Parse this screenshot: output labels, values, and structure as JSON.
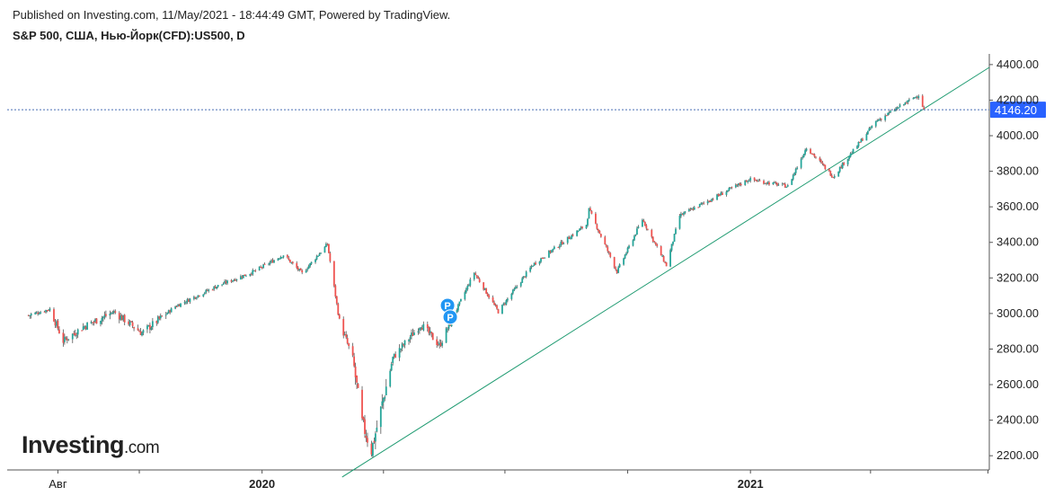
{
  "header": {
    "published": "Published on Investing.com, 11/May/2021 - 18:44:49 GMT, Powered by TradingView.",
    "title": "S&P 500, США, Нью-Йорк(CFD):US500, D"
  },
  "logo": {
    "main": "Investing",
    "suffix": ".com"
  },
  "colors": {
    "up": "#26a69a",
    "down": "#ef5350",
    "candle_wick": "#555555",
    "trendline": "#1f9b71",
    "price_line": "#4a6fb5",
    "price_label_bg": "#2962ff",
    "axis": "#555555"
  },
  "chart_data": {
    "type": "candlestick",
    "ylim": [
      2120,
      4460
    ],
    "y_ticks": [
      2200,
      2400,
      2600,
      2800,
      3000,
      3200,
      3400,
      3600,
      3800,
      4000,
      4200,
      4400
    ],
    "y_tick_labels": [
      "2200.00",
      "2400.00",
      "2600.00",
      "2800.00",
      "3000.00",
      "3200.00",
      "3400.00",
      "3600.00",
      "3800.00",
      "4000.00",
      "4200.00",
      "4400.00"
    ],
    "x_labels": [
      {
        "date": "2019-08-01",
        "label": "Авг",
        "bold": false
      },
      {
        "date": "2020-01-01",
        "label": "2020",
        "bold": true
      },
      {
        "date": "2021-01-01",
        "label": "2021",
        "bold": true
      }
    ],
    "x_start": "2019-06-24",
    "x_end": "2021-06-29",
    "current_price": 4146.2,
    "current_price_label": "4146.20",
    "trendline": [
      {
        "date": "2020-03-01",
        "value": 2080
      },
      {
        "date": "2021-06-26",
        "value": 4370
      }
    ],
    "markers": [
      {
        "date": "2020-05-19",
        "value": 3045,
        "label": "P"
      },
      {
        "date": "2020-05-21",
        "value": 2980,
        "label": "P"
      }
    ],
    "price_path": [
      [
        "2019-07-10",
        2990
      ],
      [
        "2019-07-26",
        3025
      ],
      [
        "2019-08-05",
        2845
      ],
      [
        "2019-08-20",
        2925
      ],
      [
        "2019-09-12",
        3010
      ],
      [
        "2019-10-03",
        2890
      ],
      [
        "2019-10-28",
        3040
      ],
      [
        "2019-11-27",
        3150
      ],
      [
        "2019-12-27",
        3240
      ],
      [
        "2020-01-17",
        3330
      ],
      [
        "2020-01-31",
        3225
      ],
      [
        "2020-02-19",
        3390
      ],
      [
        "2020-02-28",
        2955
      ],
      [
        "2020-03-09",
        2745
      ],
      [
        "2020-03-16",
        2385
      ],
      [
        "2020-03-23",
        2230
      ],
      [
        "2020-04-08",
        2750
      ],
      [
        "2020-04-29",
        2940
      ],
      [
        "2020-05-13",
        2820
      ],
      [
        "2020-06-08",
        3230
      ],
      [
        "2020-06-26",
        3010
      ],
      [
        "2020-07-22",
        3275
      ],
      [
        "2020-08-31",
        3500
      ],
      [
        "2020-09-02",
        3585
      ],
      [
        "2020-09-23",
        3235
      ],
      [
        "2020-10-12",
        3530
      ],
      [
        "2020-10-30",
        3270
      ],
      [
        "2020-11-09",
        3550
      ],
      [
        "2020-12-31",
        3755
      ],
      [
        "2021-01-29",
        3715
      ],
      [
        "2021-02-12",
        3935
      ],
      [
        "2021-03-04",
        3770
      ],
      [
        "2021-04-05",
        4080
      ],
      [
        "2021-05-07",
        4230
      ],
      [
        "2021-05-11",
        4146
      ]
    ]
  }
}
